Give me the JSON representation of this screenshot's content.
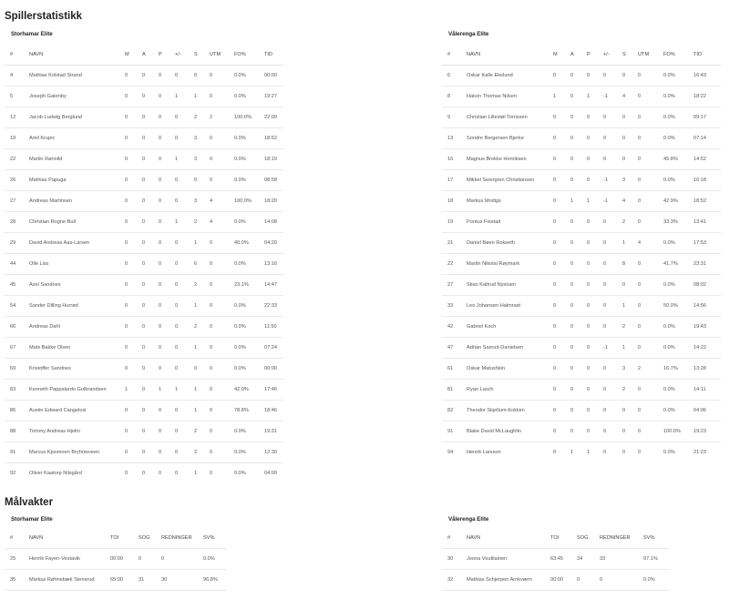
{
  "skaters": {
    "title": "Spillerstatistikk",
    "columns": [
      "#",
      "NAVN",
      "M",
      "A",
      "P",
      "+/-",
      "S",
      "UTM",
      "FO%",
      "TID"
    ],
    "teams": [
      {
        "name": "Storhamar Elite",
        "rows": [
          [
            "4",
            "Mathias Kolstad Strand",
            "0",
            "0",
            "0",
            "0",
            "0",
            "0",
            "0.0%",
            "00:00"
          ],
          [
            "5",
            "Joseph Gatenby",
            "0",
            "0",
            "0",
            "1",
            "1",
            "0",
            "0.0%",
            "19:27"
          ],
          [
            "12",
            "Jacob Ludwig Berglund",
            "0",
            "0",
            "0",
            "0",
            "2",
            "2",
            "100.0%",
            "22:09"
          ],
          [
            "19",
            "Amil Krupic",
            "0",
            "0",
            "0",
            "0",
            "3",
            "0",
            "0.0%",
            "18:52"
          ],
          [
            "22",
            "Martin Rønnild",
            "0",
            "0",
            "0",
            "1",
            "3",
            "0",
            "0.0%",
            "18:19"
          ],
          [
            "26",
            "Mathias Papuga",
            "0",
            "0",
            "0",
            "0",
            "0",
            "0",
            "0.0%",
            "08:58"
          ],
          [
            "27",
            "Andreas Martinsen",
            "0",
            "0",
            "0",
            "0",
            "3",
            "4",
            "100.0%",
            "18:20"
          ],
          [
            "28",
            "Christian Rogne Bull",
            "0",
            "0",
            "0",
            "1",
            "2",
            "4",
            "0.0%",
            "14:08"
          ],
          [
            "29",
            "David Andreas Aas-Larsen",
            "0",
            "0",
            "0",
            "0",
            "1",
            "0",
            "40.0%",
            "04:20"
          ],
          [
            "44",
            "Olle Liss",
            "0",
            "0",
            "0",
            "0",
            "6",
            "0",
            "0.0%",
            "13:16"
          ],
          [
            "45",
            "Axel Sandnes",
            "0",
            "0",
            "0",
            "0",
            "2",
            "0",
            "23.1%",
            "14:47"
          ],
          [
            "54",
            "Sander Dilling Hurrød",
            "0",
            "0",
            "0",
            "0",
            "1",
            "0",
            "0.0%",
            "22:33"
          ],
          [
            "66",
            "Andreas Dahl",
            "0",
            "0",
            "0",
            "0",
            "2",
            "0",
            "0.0%",
            "11:50"
          ],
          [
            "67",
            "Mats Bakke Olsen",
            "0",
            "0",
            "0",
            "0",
            "1",
            "0",
            "0.0%",
            "07:24"
          ],
          [
            "69",
            "Kristoffer Sandnes",
            "0",
            "0",
            "0",
            "0",
            "0",
            "0",
            "0.0%",
            "00:00"
          ],
          [
            "83",
            "Kenneth Pappalardo Gulbrandsen",
            "1",
            "0",
            "1",
            "1",
            "1",
            "0",
            "42.9%",
            "17:46"
          ],
          [
            "86",
            "Austin Edward Cangelosi",
            "0",
            "0",
            "0",
            "0",
            "1",
            "0",
            "78.8%",
            "18:46"
          ],
          [
            "88",
            "Tommy Andreas Hjelm",
            "0",
            "0",
            "0",
            "0",
            "2",
            "0",
            "0.0%",
            "19:31"
          ],
          [
            "91",
            "Marcus Kjosmoen Bryhnisveen",
            "0",
            "0",
            "0",
            "0",
            "2",
            "0",
            "0.0%",
            "12:30"
          ],
          [
            "92",
            "Oliver Kaatorp Nilsgård",
            "0",
            "0",
            "0",
            "0",
            "1",
            "0",
            "0.0%",
            "04:09"
          ]
        ]
      },
      {
        "name": "Vålerenga Elite",
        "rows": [
          [
            "6",
            "Oskar Kalle Ekelund",
            "0",
            "0",
            "0",
            "0",
            "0",
            "0",
            "0.0%",
            "16:43"
          ],
          [
            "8",
            "Hakon Thomas Nilsen",
            "1",
            "0",
            "1",
            "-1",
            "4",
            "0",
            "0.0%",
            "18:22"
          ],
          [
            "9",
            "Christian Lillestøl Torrissen",
            "0",
            "0",
            "0",
            "0",
            "0",
            "0",
            "0.0%",
            "09:17"
          ],
          [
            "13",
            "Sondre Bergersen Bjerke",
            "0",
            "0",
            "0",
            "0",
            "0",
            "0",
            "0.0%",
            "07:14"
          ],
          [
            "16",
            "Magnus Brekke Henriksen",
            "0",
            "0",
            "0",
            "0",
            "0",
            "0",
            "45.8%",
            "14:52"
          ],
          [
            "17",
            "Mikkel Seiergren Christiansen",
            "0",
            "0",
            "0",
            "-1",
            "3",
            "0",
            "0.0%",
            "16:18"
          ],
          [
            "18",
            "Markus Modigs",
            "0",
            "1",
            "1",
            "-1",
            "4",
            "0",
            "42.9%",
            "18:52"
          ],
          [
            "19",
            "Pontus Finstad",
            "0",
            "0",
            "0",
            "0",
            "2",
            "0",
            "33.3%",
            "13:41"
          ],
          [
            "21",
            "Daniel Bøen Rokseth",
            "0",
            "0",
            "0",
            "0",
            "1",
            "4",
            "0.0%",
            "17:53"
          ],
          [
            "22",
            "Martin Nikolai Røymark",
            "0",
            "0",
            "0",
            "0",
            "8",
            "0",
            "41.7%",
            "23:31"
          ],
          [
            "27",
            "Stian Kaltrud Nystuen",
            "0",
            "0",
            "0",
            "0",
            "0",
            "0",
            "0.0%",
            "08:02"
          ],
          [
            "33",
            "Leo Johansen Halmrast",
            "0",
            "0",
            "0",
            "0",
            "1",
            "0",
            "50.0%",
            "14:56"
          ],
          [
            "42",
            "Gabriel Koch",
            "0",
            "0",
            "0",
            "0",
            "2",
            "0",
            "0.0%",
            "19:43"
          ],
          [
            "47",
            "Adrian Saxrud-Danielsen",
            "0",
            "0",
            "0",
            "-1",
            "1",
            "0",
            "0.0%",
            "14:22"
          ],
          [
            "61",
            "Oskar Matushkin",
            "0",
            "0",
            "0",
            "0",
            "3",
            "2",
            "16.7%",
            "13:28"
          ],
          [
            "81",
            "Ryan Lasch",
            "0",
            "0",
            "0",
            "0",
            "2",
            "0",
            "0.0%",
            "14:11"
          ],
          [
            "82",
            "Theodor Skjellum-Kokkim",
            "0",
            "0",
            "0",
            "0",
            "0",
            "0",
            "0.0%",
            "04:06"
          ],
          [
            "91",
            "Blake David McLaughlin",
            "0",
            "0",
            "0",
            "0",
            "0",
            "0",
            "100.0%",
            "19:23"
          ],
          [
            "94",
            "Henrik Larsson",
            "0",
            "1",
            "1",
            "0",
            "0",
            "0",
            "0.0%",
            "21:23"
          ]
        ]
      }
    ]
  },
  "goalies": {
    "title": "Målvakter",
    "columns": [
      "#",
      "NAVN",
      "TOI",
      "SOG",
      "REDNINGER",
      "SV%"
    ],
    "teams": [
      {
        "name": "Storhamar Elite",
        "rows": [
          [
            "25",
            "Henrik Fayen-Vestavik",
            "00:00",
            "0",
            "0",
            "0.0%"
          ],
          [
            "35",
            "Markus Røhnebæk Stensrud",
            "65:00",
            "31",
            "30",
            "96.8%"
          ]
        ]
      },
      {
        "name": "Vålerenga Elite",
        "rows": [
          [
            "30",
            "Joona Voutilainen",
            "63:45",
            "34",
            "33",
            "97.1%"
          ],
          [
            "32",
            "Mathias Schjerpen Arnkværn",
            "00:00",
            "0",
            "0",
            "0.0%"
          ]
        ]
      }
    ]
  }
}
